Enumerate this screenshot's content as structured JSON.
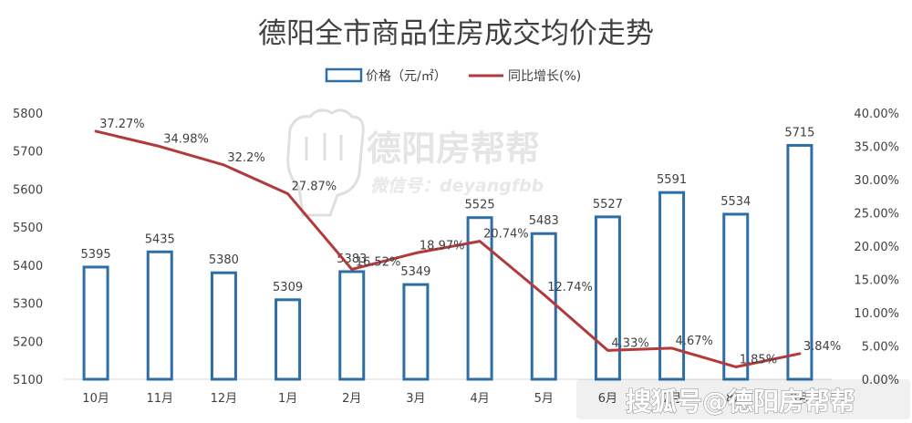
{
  "watermark": {
    "brand": "德阳房帮帮",
    "account": "微信号：deyangfbb",
    "corner": "搜狐号@德阳房帮帮"
  },
  "chart_data": {
    "type": "bar",
    "title": "德阳全市商品住房成交均价走势",
    "categories": [
      "10月",
      "11月",
      "12月",
      "1月",
      "2月",
      "3月",
      "4月",
      "5月",
      "6月",
      "7月",
      "8月",
      "9月"
    ],
    "series": [
      {
        "name": "价格（元/㎡）",
        "type": "bar",
        "axis": "left",
        "values": [
          5395,
          5435,
          5380,
          5309,
          5383,
          5349,
          5525,
          5483,
          5527,
          5591,
          5534,
          5715
        ],
        "labels": [
          "5395",
          "5435",
          "5380",
          "5309",
          "5383",
          "5349",
          "5525",
          "5483",
          "5527",
          "5591",
          "5534",
          "5715"
        ],
        "color": "#2e6ea6"
      },
      {
        "name": "同比增长(%)",
        "type": "line",
        "axis": "right",
        "values": [
          37.27,
          34.98,
          32.2,
          27.87,
          16.52,
          18.97,
          20.74,
          12.74,
          4.33,
          4.67,
          1.85,
          3.84
        ],
        "labels": [
          "37.27%",
          "34.98%",
          "32.2%",
          "27.87%",
          "16.52%",
          "18.97%",
          "20.74%",
          "12.74%",
          "4.33%",
          "4.67%",
          "1.85%",
          "3.84%"
        ],
        "color": "#b23a3a"
      }
    ],
    "y_left": {
      "range": [
        5100,
        5800
      ],
      "ticks": [
        "5100",
        "5200",
        "5300",
        "5400",
        "5500",
        "5600",
        "5700",
        "5800"
      ]
    },
    "y_right": {
      "range": [
        0,
        40
      ],
      "ticks": [
        "0.00%",
        "5.00%",
        "10.00%",
        "15.00%",
        "20.00%",
        "25.00%",
        "30.00%",
        "35.00%",
        "40.00%"
      ]
    },
    "grid": false,
    "legend_position": "top-center"
  }
}
